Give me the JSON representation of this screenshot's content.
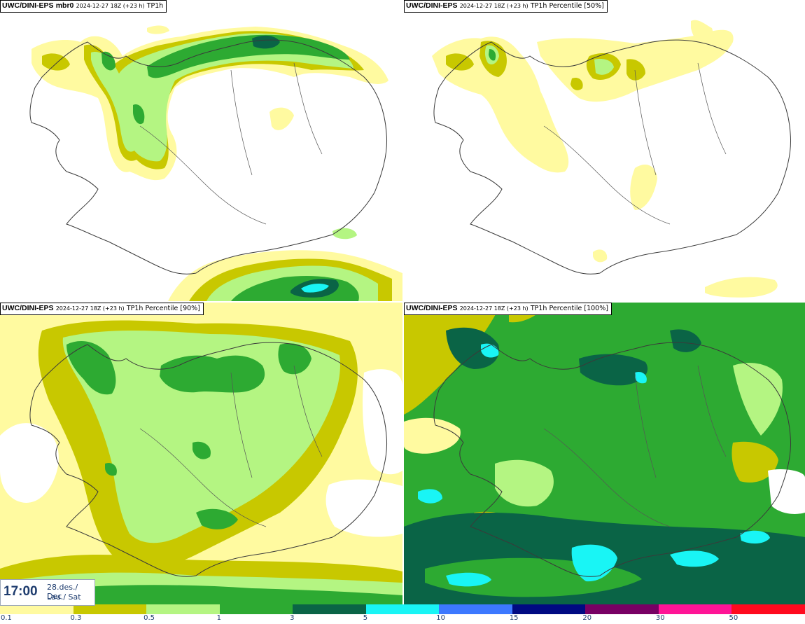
{
  "panels": [
    {
      "id": "mbr0",
      "model": "UWC/DINI-EPS",
      "member": "mbr0",
      "run": "2024-12-27 18Z (+23 h)",
      "field": "TP1h"
    },
    {
      "id": "p50",
      "model": "UWC/DINI-EPS",
      "member": "",
      "run": "2024-12-27 18Z (+23 h)",
      "field": "TP1h Percentile [50%]"
    },
    {
      "id": "p90",
      "model": "UWC/DINI-EPS",
      "member": "",
      "run": "2024-12-27 18Z (+23 h)",
      "field": "TP1h Percentile [90%]"
    },
    {
      "id": "p100",
      "model": "UWC/DINI-EPS",
      "member": "",
      "run": "2024-12-27 18Z (+23 h)",
      "field": "TP1h Percentile [100%]"
    }
  ],
  "valid_time": {
    "time": "17:00",
    "date_line1": "28.des./ Dec",
    "date_line2": "Lau./ Sat"
  },
  "legend": {
    "levels": [
      {
        "label": "0.1",
        "color": "#fffaa0"
      },
      {
        "label": "0.3",
        "color": "#c8c800"
      },
      {
        "label": "0.5",
        "color": "#b4f582"
      },
      {
        "label": "1",
        "color": "#2daa32"
      },
      {
        "label": "3",
        "color": "#0a6446"
      },
      {
        "label": "5",
        "color": "#19f5f5"
      },
      {
        "label": "10",
        "color": "#3c78ff"
      },
      {
        "label": "15",
        "color": "#000a82"
      },
      {
        "label": "20",
        "color": "#780064"
      },
      {
        "label": "30",
        "color": "#ff1496"
      },
      {
        "label": "50",
        "color": "#ff0a1e"
      }
    ]
  },
  "colors": {
    "coastline": "#3a3a3a",
    "background": "#ffffff",
    "text": "#1e3c6e"
  }
}
